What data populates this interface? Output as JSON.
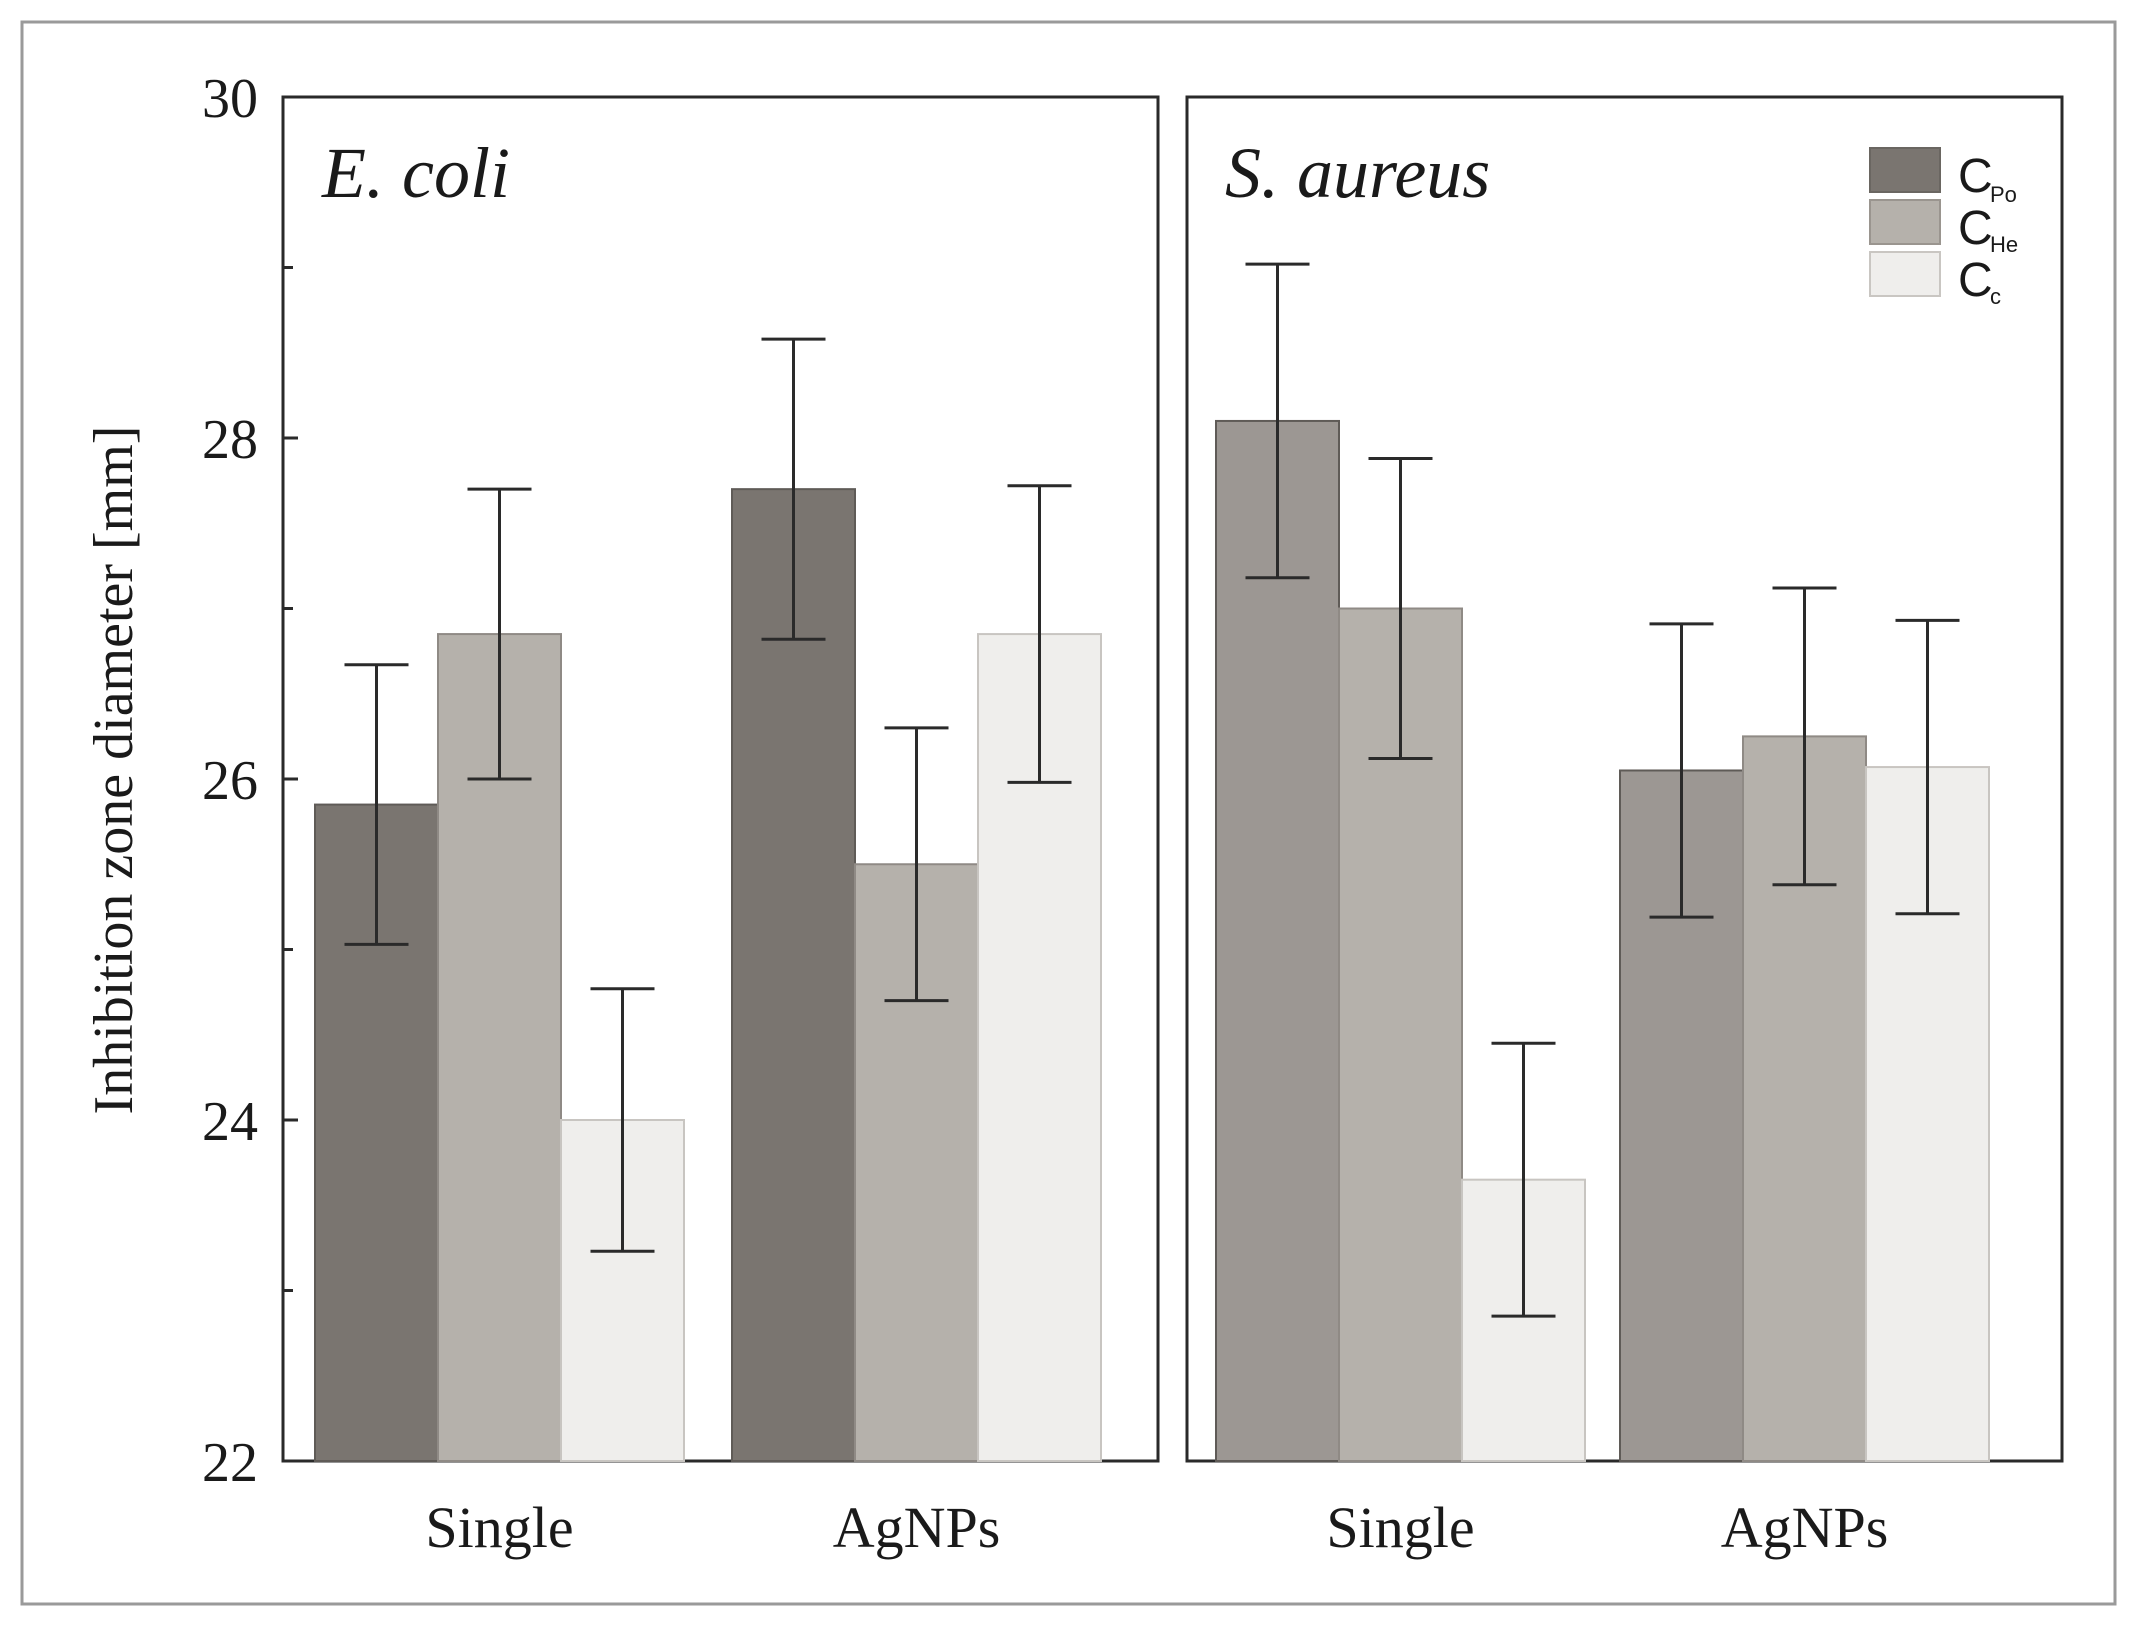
{
  "chart_data": {
    "type": "bar",
    "ylabel": "Inhibition zone diameter [mm]",
    "ylim": [
      22,
      30
    ],
    "yticks": [
      "22",
      "24",
      "26",
      "28",
      "30"
    ],
    "categories": [
      "Single",
      "AgNPs"
    ],
    "legend": {
      "placement": "top-right of S. aureus panel",
      "entries": [
        {
          "base": "C",
          "sub": "Po",
          "color": "#7a7570"
        },
        {
          "base": "C",
          "sub": "He",
          "color": "#b5b1ab"
        },
        {
          "base": "C",
          "sub": "c",
          "color": "#efeeec"
        }
      ]
    },
    "panels": [
      {
        "title": "E. coli",
        "colors": [
          "#7a7570",
          "#b5b1ab",
          "#efeeec"
        ],
        "series": [
          {
            "name": "CPo",
            "values": [
              25.85,
              27.7
            ],
            "err": [
              0.82,
              0.88
            ]
          },
          {
            "name": "CHe",
            "values": [
              26.85,
              25.5
            ],
            "err": [
              0.85,
              0.8
            ]
          },
          {
            "name": "Cc",
            "values": [
              24.0,
              26.85
            ],
            "err": [
              0.77,
              0.87
            ]
          }
        ]
      },
      {
        "title": "S. aureus",
        "colors": [
          "#9c9793",
          "#b5b1ab",
          "#efeeec"
        ],
        "series": [
          {
            "name": "CPo",
            "values": [
              28.1,
              26.05
            ],
            "err": [
              0.92,
              0.86
            ]
          },
          {
            "name": "CHe",
            "values": [
              27.0,
              26.25
            ],
            "err": [
              0.88,
              0.87
            ]
          },
          {
            "name": "Cc",
            "values": [
              23.65,
              26.07
            ],
            "err": [
              0.8,
              0.86
            ]
          }
        ]
      }
    ]
  }
}
